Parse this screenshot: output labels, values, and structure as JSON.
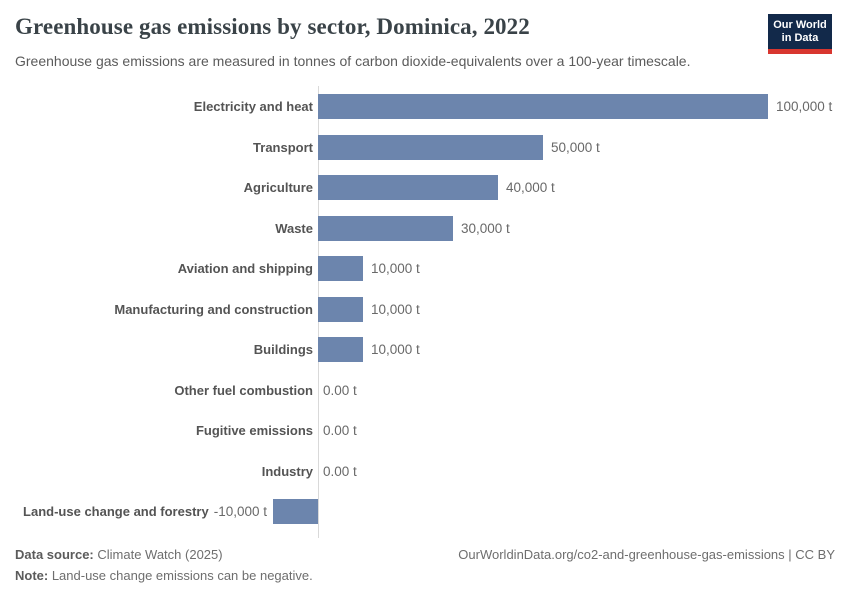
{
  "header": {
    "title": "Greenhouse gas emissions by sector, Dominica, 2022",
    "subtitle": "Greenhouse gas emissions are measured in tonnes of carbon dioxide-equivalents over a 100-year timescale.",
    "logo": {
      "line1": "Our World",
      "line2": "in Data"
    }
  },
  "chart_data": {
    "type": "bar",
    "orientation": "horizontal",
    "title": "Greenhouse gas emissions by sector, Dominica, 2022",
    "categories": [
      "Electricity and heat",
      "Transport",
      "Agriculture",
      "Waste",
      "Aviation and shipping",
      "Manufacturing and construction",
      "Buildings",
      "Other fuel combustion",
      "Fugitive emissions",
      "Industry",
      "Land-use change and forestry"
    ],
    "values": [
      100000,
      50000,
      40000,
      30000,
      10000,
      10000,
      10000,
      0,
      0,
      0,
      -10000
    ],
    "value_labels": [
      "100,000 t",
      "50,000 t",
      "40,000 t",
      "30,000 t",
      "10,000 t",
      "10,000 t",
      "10,000 t",
      "0.00 t",
      "0.00 t",
      "0.00 t",
      "-10,000 t"
    ],
    "unit": "t",
    "xlim": [
      -10000,
      100000
    ],
    "grid": false,
    "legend": false
  },
  "footer": {
    "source_label": "Data source:",
    "source_value": " Climate Watch (2025)",
    "note_label": "Note:",
    "note_value": " Land-use change emissions can be negative.",
    "link": "OurWorldinData.org/co2-and-greenhouse-gas-emissions | CC BY"
  },
  "colors": {
    "bar": "#6c85ad",
    "logo_navy": "#12294a",
    "logo_red": "#d8362f",
    "axis_line": "#d9d9d9"
  }
}
